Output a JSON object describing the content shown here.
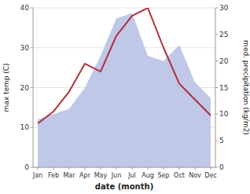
{
  "chart_data": {
    "type": "line",
    "xlabel": "date (month)",
    "ylabel": "max temp (C)",
    "y2label": "med. precipitation (kg/m2)",
    "categories": [
      "Jan",
      "Feb",
      "Mar",
      "Apr",
      "May",
      "Jun",
      "Jul",
      "Aug",
      "Sep",
      "Oct",
      "Nov",
      "Dec"
    ],
    "series": [
      {
        "type": "area",
        "color": "#c0c8e8",
        "axis": "y2",
        "values": [
          9,
          10,
          11,
          15,
          21,
          28,
          29,
          21,
          20,
          23,
          16,
          13
        ]
      },
      {
        "type": "line",
        "color": "#b03040",
        "values": [
          11,
          14,
          19,
          26,
          24,
          33,
          38,
          40,
          30,
          21,
          17,
          13
        ]
      }
    ],
    "ylim": [
      0,
      40
    ],
    "yticks": [
      0,
      10,
      20,
      30,
      40
    ],
    "y2lim": [
      0,
      30
    ],
    "y2ticks": [
      0,
      5,
      10,
      15,
      20,
      25,
      30
    ],
    "grid": true
  }
}
